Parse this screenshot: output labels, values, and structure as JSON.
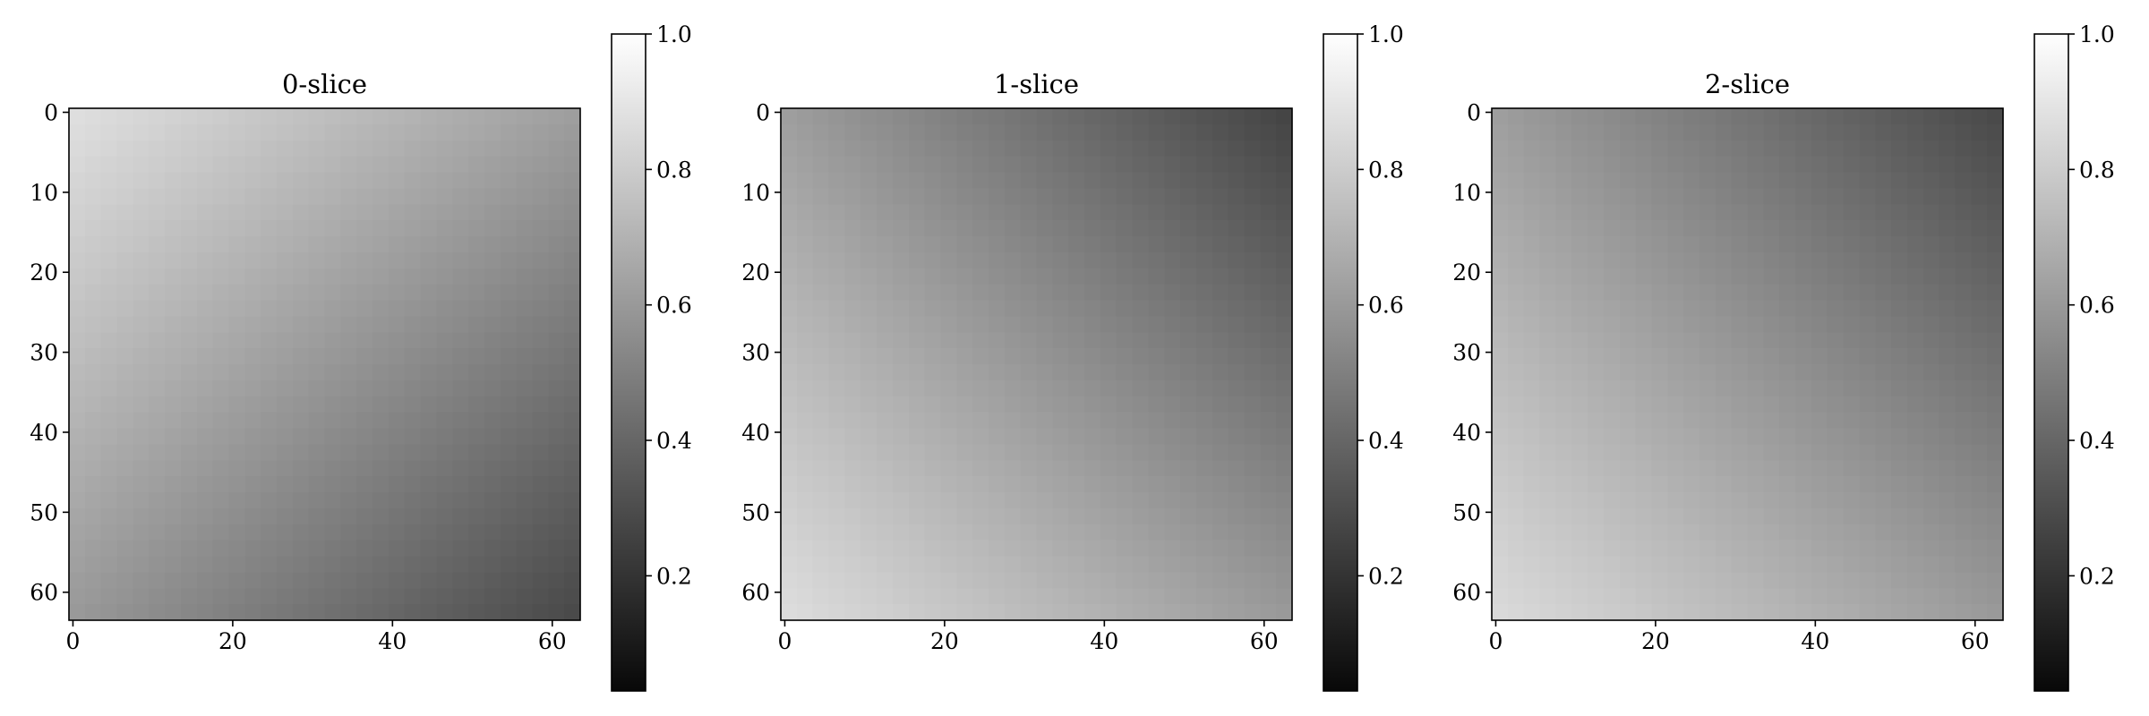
{
  "chart_data": {
    "type": "heatmap",
    "colormap": "gray",
    "image_extent_x": [
      -0.5,
      63.5
    ],
    "image_extent_y": [
      -0.5,
      63.5
    ],
    "y_axis_inverted": true,
    "xticks": [
      "0",
      "20",
      "40",
      "60"
    ],
    "yticks": [
      "0",
      "10",
      "20",
      "30",
      "40",
      "50",
      "60"
    ],
    "colorbar": {
      "range": [
        0.03,
        1.0
      ],
      "ticks": [
        "0.2",
        "0.4",
        "0.6",
        "0.8",
        "1.0"
      ]
    },
    "panels": [
      {
        "title": "0-slice",
        "corner_values": {
          "top_left": 0.88,
          "top_right": 0.62,
          "bottom_left": 0.6,
          "bottom_right": 0.28
        },
        "peak_value": 0.88,
        "min_value": 0.27
      },
      {
        "title": "1-slice",
        "corner_values": {
          "top_left": 0.62,
          "top_right": 0.26,
          "bottom_left": 0.87,
          "bottom_right": 0.6
        },
        "peak_value": 0.87,
        "min_value": 0.25
      },
      {
        "title": "2-slice",
        "corner_values": {
          "top_left": 0.62,
          "top_right": 0.28,
          "bottom_left": 0.86,
          "bottom_right": 0.6
        },
        "peak_value": 0.86,
        "min_value": 0.27
      }
    ]
  }
}
